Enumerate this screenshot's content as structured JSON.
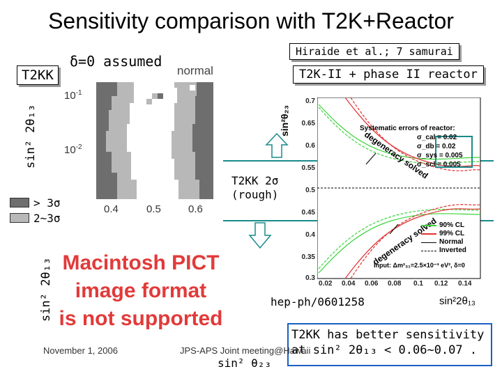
{
  "title": "Sensitivity comparison with T2K+Reactor",
  "left_panel": {
    "delta_label": "δ=0 assumed",
    "t2kk_label": "T2KK",
    "normal_label": "normal",
    "y_axis_label": "sin² 2θ₁₃",
    "y_ticks": [
      "10⁻¹",
      "10⁻²"
    ],
    "x_ticks": [
      "0.4",
      "0.5",
      "0.6"
    ],
    "legend": [
      {
        "label": "> 3σ",
        "color": "#6e6e6e"
      },
      {
        "label": "2~3σ",
        "color": "#b8b8b8"
      }
    ],
    "bottom_y_axis_label": "sin² 2θ₁₃",
    "pict_lines": [
      "Macintosh PICT",
      "image format",
      "is not supported"
    ],
    "t2kk_2sigma": "T2KK 2σ",
    "rough": "(rough)"
  },
  "right_panel": {
    "citation": "Hiraide et al.; 7 samurai",
    "header": "T2K-II + phase II reactor",
    "y_label": "sin²θ₂₃",
    "y_ticks": [
      "0.7",
      "0.65",
      "0.6",
      "0.55",
      "0.5",
      "0.45",
      "0.4",
      "0.35",
      "0.3"
    ],
    "x_ticks": [
      "0.02",
      "0.04",
      "0.06",
      "0.08",
      "0.1",
      "0.12",
      "0.14"
    ],
    "x_label": "sin²2θ₁₃",
    "syst_title": "Systematic errors of reactor:",
    "syst_items": [
      "σ_cal = 0.02",
      "σ_db = 0.02",
      "σ_sys = 0.005",
      "σ_scl = 0.005"
    ],
    "degeneracy_solved_top": "degeneracy solved",
    "degeneracy_solved_bottom": "degeneracy solved",
    "cl_legend": [
      {
        "label": "90% CL",
        "color": "#3bd43b"
      },
      {
        "label": "99% CL",
        "color": "#e03030"
      },
      {
        "label": "Normal",
        "color": "#000000"
      },
      {
        "label": "Inverted",
        "color": "#000000"
      }
    ],
    "input_text": "Input: Δm²₃₁=2.5×10⁻³ eV², δ=0",
    "reference": "hep-ph/0601258",
    "axis_sin": "sin²2θ₁₃"
  },
  "footer": {
    "date": "November 1, 2006",
    "meeting": "JPS-APS Joint meeting@Hawaii",
    "sin23": "sin² θ₂₃",
    "conclusion_line1": "T2KK has better sensitivity",
    "conclusion_line2": "at sin² 2θ₁₃ < 0.06~0.07 ."
  },
  "colors": {
    "dark_gray": "#6e6e6e",
    "light_gray": "#b8b8b8",
    "teal": "#1a8a8a",
    "green": "#3bd43b",
    "red": "#e03030",
    "pict_red": "#e23a3a",
    "blue_border": "#1a5fc2"
  }
}
